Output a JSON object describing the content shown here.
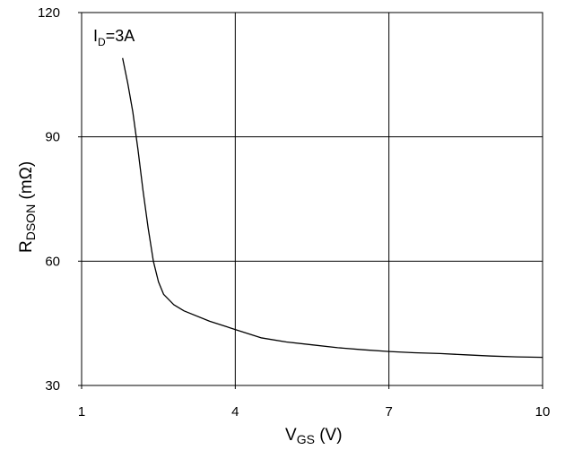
{
  "chart_data": {
    "type": "line",
    "title": "",
    "xlabel": {
      "main": "V",
      "sub": "GS",
      "rest": " (V)"
    },
    "ylabel": {
      "main": "R",
      "sub": "DSON",
      "rest": " (mΩ)"
    },
    "xlim": [
      1,
      10
    ],
    "ylim": [
      30,
      120
    ],
    "xticks": [
      1,
      4,
      7,
      10
    ],
    "yticks": [
      30,
      60,
      90,
      120
    ],
    "grid": true,
    "annotation": {
      "main": "I",
      "sub": "D",
      "rest": "=3A"
    },
    "series": [
      {
        "x": [
          1.8,
          1.9,
          2.0,
          2.1,
          2.2,
          2.3,
          2.4,
          2.5,
          2.6,
          2.8,
          3.0,
          3.5,
          4.0,
          4.5,
          5.0,
          5.5,
          6.0,
          6.5,
          7.0,
          7.5,
          8.0,
          8.5,
          9.0,
          9.5,
          10.0
        ],
        "y": [
          109,
          103,
          96,
          87,
          77,
          68,
          60,
          55,
          52,
          49.5,
          48,
          45.5,
          43.5,
          41.5,
          40.5,
          39.8,
          39.1,
          38.6,
          38.2,
          37.9,
          37.7,
          37.4,
          37.1,
          36.9,
          36.8
        ]
      }
    ],
    "colors": {
      "line": "#000000",
      "grid": "#000000",
      "background": "#ffffff"
    }
  }
}
